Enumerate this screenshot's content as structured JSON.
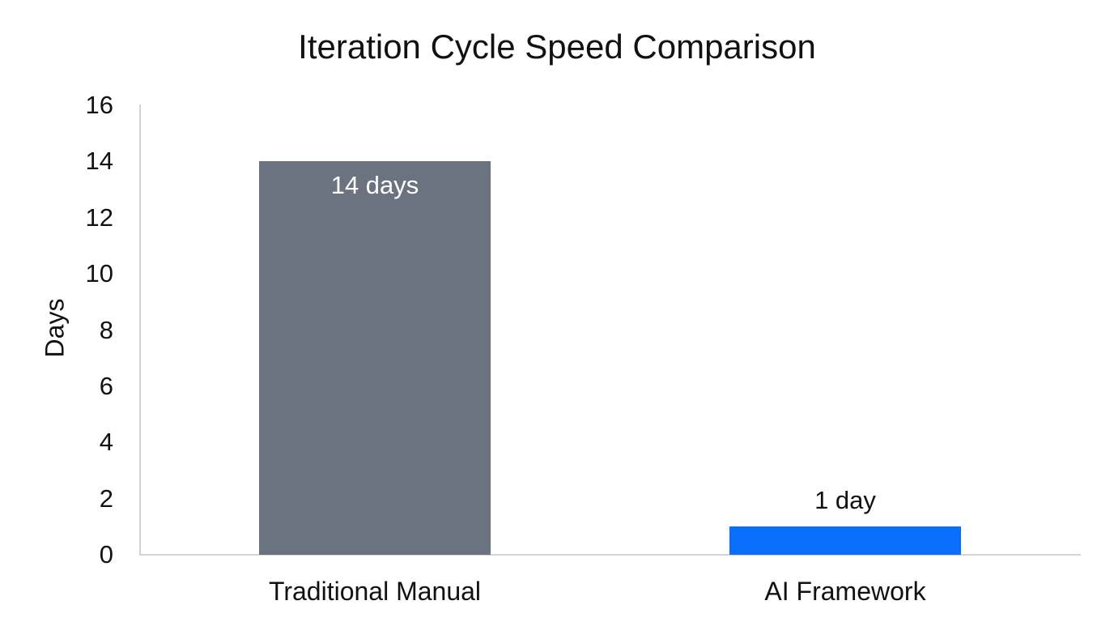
{
  "chart_data": {
    "type": "bar",
    "title": "Iteration Cycle Speed Comparison",
    "xlabel": "",
    "ylabel": "Days",
    "categories": [
      "Traditional Manual",
      "AI Framework"
    ],
    "values": [
      14,
      1
    ],
    "data_labels": [
      "14 days",
      "1 day"
    ],
    "colors": [
      "#6b7280",
      "#0a6efd"
    ],
    "ylim": [
      0,
      16
    ],
    "yticks": [
      0,
      2,
      4,
      6,
      8,
      10,
      12,
      14,
      16
    ],
    "grid": false,
    "legend": null
  }
}
